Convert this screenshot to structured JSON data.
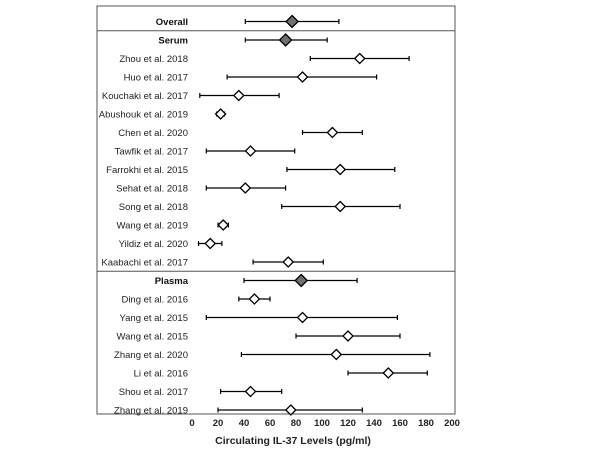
{
  "chart_data": {
    "type": "forest",
    "xlabel": "Circulating IL-37 Levels (pg/ml)",
    "xlim": [
      0,
      200
    ],
    "xticks": [
      0,
      20,
      40,
      60,
      80,
      100,
      120,
      140,
      160,
      180,
      200
    ],
    "grid": false,
    "legend": "none",
    "colors": {
      "pooled_marker": "#707070",
      "study_marker": "#ffffff",
      "line": "#000000"
    },
    "rows": [
      {
        "label": "Overall",
        "kind": "pooled",
        "group": "overall",
        "mean": 77,
        "lo": 41,
        "hi": 113
      },
      {
        "label": "Serum",
        "kind": "pooled",
        "group": "serum",
        "mean": 72,
        "lo": 41,
        "hi": 104
      },
      {
        "label": "Zhou et al. 2018",
        "kind": "study",
        "mean": 129,
        "lo": 91,
        "hi": 167
      },
      {
        "label": "Huo et al. 2017",
        "kind": "study",
        "mean": 85,
        "lo": 27,
        "hi": 142
      },
      {
        "label": "Kouchaki et al. 2017",
        "kind": "study",
        "mean": 36,
        "lo": 6,
        "hi": 67
      },
      {
        "label": "Abushouk et al. 2019",
        "kind": "study",
        "mean": 22,
        "lo": 19,
        "hi": 25
      },
      {
        "label": "Chen et al. 2020",
        "kind": "study",
        "mean": 108,
        "lo": 85,
        "hi": 131
      },
      {
        "label": "Tawfik et al. 2017",
        "kind": "study",
        "mean": 45,
        "lo": 11,
        "hi": 79
      },
      {
        "label": "Farrokhi et al. 2015",
        "kind": "study",
        "mean": 114,
        "lo": 73,
        "hi": 156
      },
      {
        "label": "Sehat et al. 2018",
        "kind": "study",
        "mean": 41,
        "lo": 11,
        "hi": 72
      },
      {
        "label": "Song et al. 2018",
        "kind": "study",
        "mean": 114,
        "lo": 69,
        "hi": 160
      },
      {
        "label": "Wang et al. 2019",
        "kind": "study",
        "mean": 24,
        "lo": 20,
        "hi": 28
      },
      {
        "label": "Yildiz et al. 2020",
        "kind": "study",
        "mean": 14,
        "lo": 5,
        "hi": 23
      },
      {
        "label": "Kaabachi et al. 2017",
        "kind": "study",
        "mean": 74,
        "lo": 47,
        "hi": 101
      },
      {
        "label": "Plasma",
        "kind": "pooled",
        "group": "plasma",
        "mean": 84,
        "lo": 40,
        "hi": 127
      },
      {
        "label": "Ding et al. 2016",
        "kind": "study",
        "mean": 48,
        "lo": 36,
        "hi": 60
      },
      {
        "label": "Yang et al. 2015",
        "kind": "study",
        "mean": 85,
        "lo": 11,
        "hi": 158
      },
      {
        "label": "Wang et al. 2015",
        "kind": "study",
        "mean": 120,
        "lo": 80,
        "hi": 160
      },
      {
        "label": "Zhang et al. 2020",
        "kind": "study",
        "mean": 111,
        "lo": 38,
        "hi": 183
      },
      {
        "label": "Li et al. 2016",
        "kind": "study",
        "mean": 151,
        "lo": 120,
        "hi": 181
      },
      {
        "label": "Shou et al. 2017",
        "kind": "study",
        "mean": 45,
        "lo": 22,
        "hi": 69
      },
      {
        "label": "Zhang et al. 2019",
        "kind": "study",
        "mean": 76,
        "lo": 20,
        "hi": 131
      }
    ]
  }
}
